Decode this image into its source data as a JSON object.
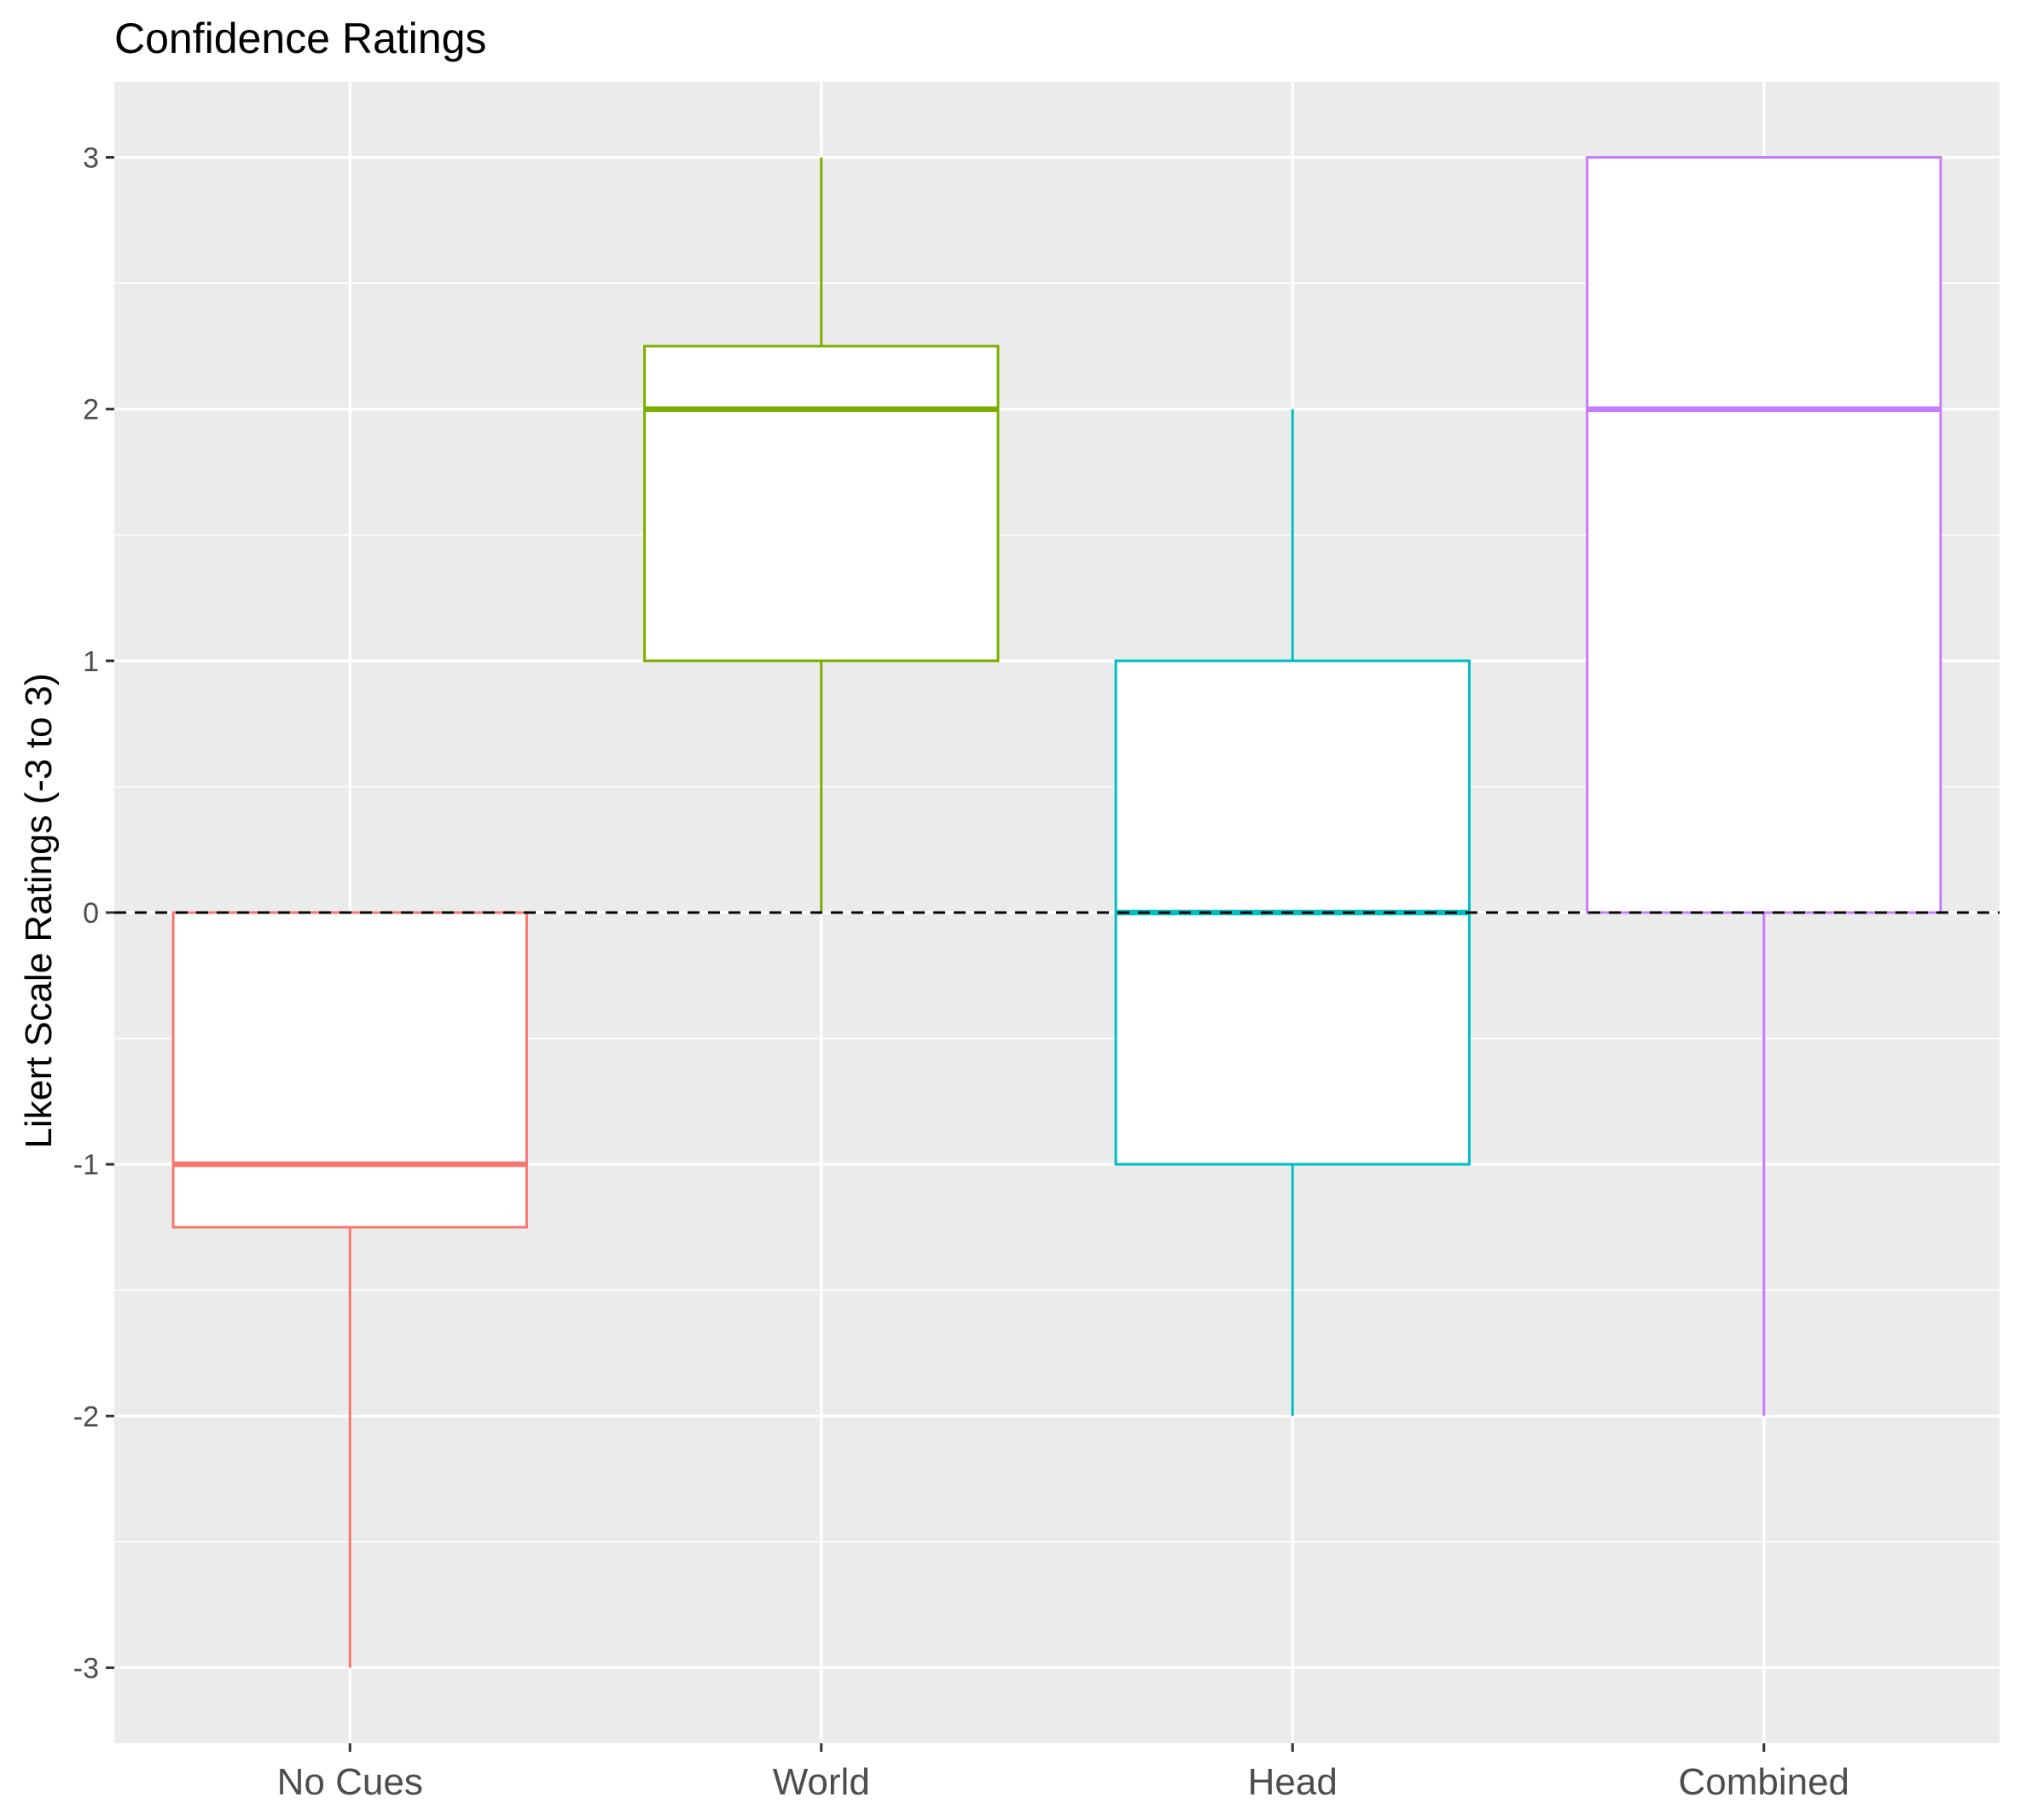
{
  "chart_data": {
    "type": "boxplot",
    "title": "Confidence Ratings",
    "xlabel": "",
    "ylabel": "Likert Scale Ratings (-3 to 3)",
    "ylim": [
      -3.3,
      3.3
    ],
    "yticks": [
      -3,
      -2,
      -1,
      0,
      1,
      2,
      3
    ],
    "ytick_labels": [
      "-3",
      "-2",
      "-1",
      "0",
      "1",
      "2",
      "3"
    ],
    "grid": true,
    "reference_line": {
      "y": 0,
      "style": "dashed",
      "color": "#000000"
    },
    "categories": [
      "No Cues",
      "World",
      "Head",
      "Combined"
    ],
    "boxes": [
      {
        "category": "No Cues",
        "min": -3,
        "q1": -1.25,
        "median": -1,
        "q3": 0,
        "max": 0,
        "color": "#F8766D"
      },
      {
        "category": "World",
        "min": 0,
        "q1": 1,
        "median": 2,
        "q3": 2.25,
        "max": 3,
        "color": "#7CAE00"
      },
      {
        "category": "Head",
        "min": -2,
        "q1": -1,
        "median": 0,
        "q3": 1,
        "max": 2,
        "color": "#00BFC4"
      },
      {
        "category": "Combined",
        "min": -2,
        "q1": 0,
        "median": 2,
        "q3": 3,
        "max": 3,
        "color": "#C77CFF"
      }
    ]
  }
}
